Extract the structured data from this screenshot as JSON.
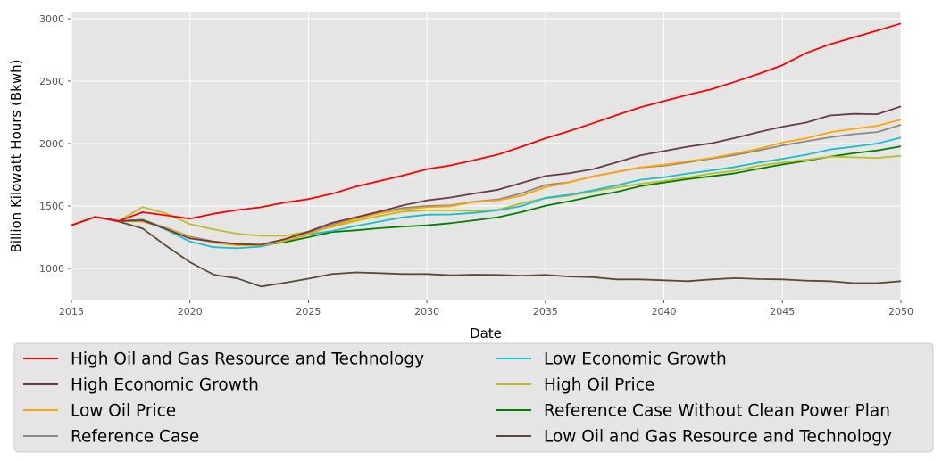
{
  "chart_data": {
    "type": "line",
    "title": "",
    "xlabel": "Date",
    "ylabel": "Billion Kilowatt Hours (Bkwh)",
    "xlim": [
      2015,
      2050
    ],
    "ylim": [
      750,
      3050
    ],
    "x_ticks": [
      2015,
      2020,
      2025,
      2030,
      2035,
      2040,
      2045,
      2050
    ],
    "y_ticks": [
      1000,
      1500,
      2000,
      2500,
      3000
    ],
    "grid": true,
    "legend_placement": "below",
    "x": [
      2015,
      2016,
      2017,
      2018,
      2019,
      2020,
      2021,
      2022,
      2023,
      2024,
      2025,
      2026,
      2027,
      2028,
      2029,
      2030,
      2031,
      2032,
      2033,
      2034,
      2035,
      2036,
      2037,
      2038,
      2039,
      2040,
      2041,
      2042,
      2043,
      2044,
      2045,
      2046,
      2047,
      2048,
      2049,
      2050
    ],
    "series": [
      {
        "name": "High Oil and Gas Resource and Technology",
        "color": "#ff0000",
        "values": [
          1345,
          1412,
          1380,
          1450,
          1425,
          1398,
          1438,
          1468,
          1490,
          1528,
          1555,
          1598,
          1655,
          1700,
          1745,
          1795,
          1825,
          1868,
          1912,
          1975,
          2042,
          2100,
          2162,
          2228,
          2290,
          2340,
          2390,
          2435,
          2495,
          2558,
          2628,
          2725,
          2795,
          2850,
          2905,
          2962
        ]
      },
      {
        "name": "High Economic Growth",
        "color": "#6b3a46",
        "values": [
          1345,
          1412,
          1380,
          1385,
          1315,
          1240,
          1215,
          1195,
          1190,
          1235,
          1295,
          1365,
          1410,
          1455,
          1505,
          1545,
          1568,
          1600,
          1630,
          1685,
          1740,
          1762,
          1795,
          1850,
          1905,
          1940,
          1975,
          2002,
          2045,
          2092,
          2135,
          2168,
          2225,
          2238,
          2235,
          2298
        ]
      },
      {
        "name": "Low Oil Price",
        "color": "#ffa500",
        "values": [
          1345,
          1412,
          1380,
          1375,
          1322,
          1250,
          1205,
          1185,
          1185,
          1222,
          1275,
          1340,
          1395,
          1440,
          1472,
          1490,
          1498,
          1532,
          1545,
          1582,
          1650,
          1690,
          1735,
          1775,
          1810,
          1830,
          1858,
          1885,
          1920,
          1958,
          2008,
          2042,
          2090,
          2118,
          2142,
          2192
        ]
      },
      {
        "name": "Reference Case",
        "color": "#888888",
        "values": [
          1345,
          1412,
          1380,
          1382,
          1325,
          1255,
          1215,
          1195,
          1188,
          1228,
          1282,
          1350,
          1400,
          1445,
          1485,
          1500,
          1505,
          1535,
          1552,
          1602,
          1668,
          1690,
          1738,
          1772,
          1808,
          1822,
          1850,
          1880,
          1908,
          1945,
          1985,
          2018,
          2050,
          2075,
          2092,
          2150
        ]
      },
      {
        "name": "Low Economic Growth",
        "color": "#17becf",
        "values": [
          1345,
          1412,
          1380,
          1388,
          1310,
          1215,
          1170,
          1162,
          1175,
          1220,
          1272,
          1300,
          1340,
          1375,
          1410,
          1430,
          1432,
          1445,
          1465,
          1500,
          1565,
          1590,
          1625,
          1665,
          1710,
          1730,
          1760,
          1785,
          1812,
          1848,
          1878,
          1910,
          1952,
          1975,
          2000,
          2048
        ]
      },
      {
        "name": "High Oil Price",
        "color": "#bcbd22",
        "values": [
          1345,
          1412,
          1380,
          1492,
          1440,
          1355,
          1312,
          1278,
          1262,
          1262,
          1295,
          1332,
          1380,
          1420,
          1455,
          1465,
          1465,
          1460,
          1470,
          1522,
          1562,
          1582,
          1618,
          1648,
          1678,
          1700,
          1728,
          1760,
          1782,
          1822,
          1848,
          1870,
          1895,
          1890,
          1885,
          1902
        ]
      },
      {
        "name": "Reference Case Without Clean Power Plan",
        "color": "#008000",
        "values": [
          1345,
          1412,
          1380,
          1390,
          1320,
          1245,
          1210,
          1190,
          1188,
          1210,
          1250,
          1292,
          1305,
          1322,
          1335,
          1345,
          1362,
          1385,
          1410,
          1452,
          1502,
          1538,
          1578,
          1612,
          1658,
          1688,
          1715,
          1738,
          1762,
          1798,
          1832,
          1862,
          1895,
          1922,
          1945,
          1978
        ]
      },
      {
        "name": "Low Oil and Gas Resource and Technology",
        "color": "#5c4a32",
        "values": [
          1345,
          1412,
          1375,
          1320,
          1180,
          1050,
          950,
          920,
          855,
          885,
          918,
          955,
          968,
          962,
          955,
          955,
          945,
          950,
          948,
          942,
          948,
          935,
          930,
          912,
          912,
          905,
          898,
          912,
          922,
          915,
          912,
          902,
          898,
          882,
          882,
          898
        ]
      }
    ]
  }
}
